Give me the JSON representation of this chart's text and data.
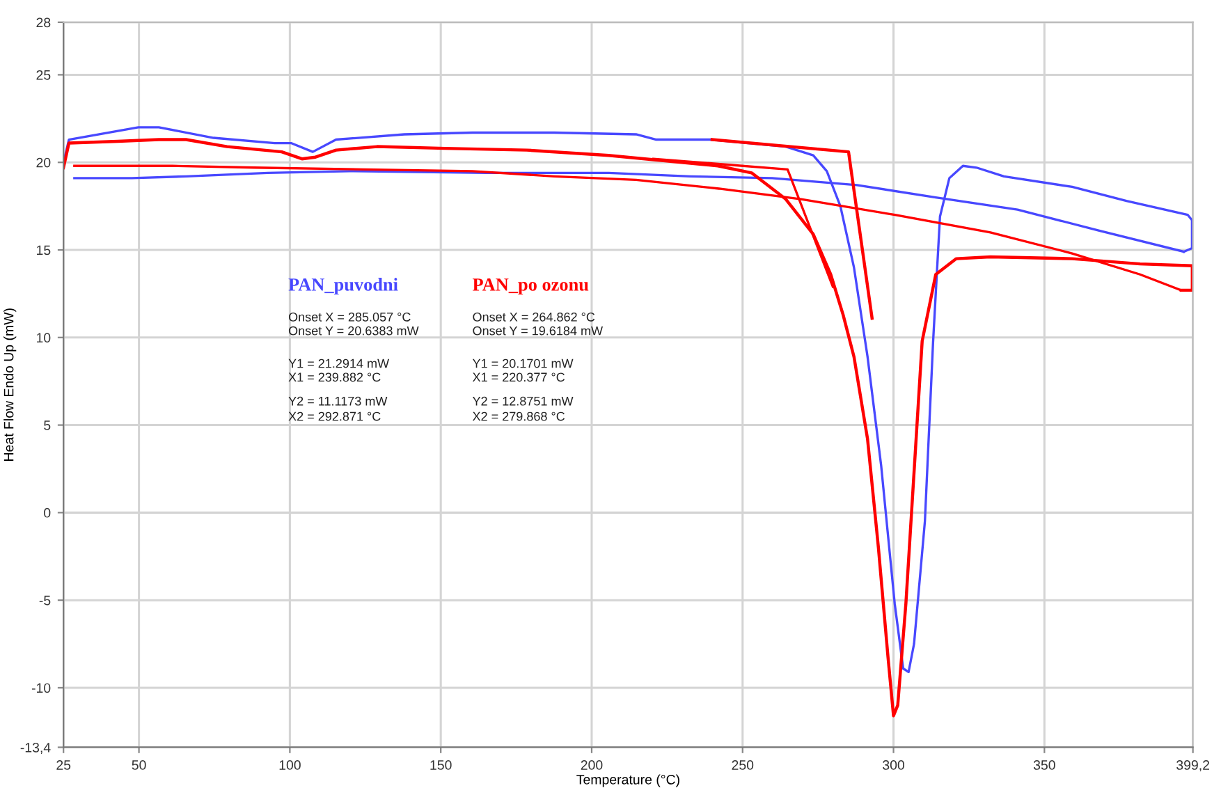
{
  "chart_data": {
    "type": "line",
    "xlabel": "Temperature (°C)",
    "ylabel": "Heat Flow Endo Up (mW)",
    "xlim": [
      25,
      399.2
    ],
    "ylim": [
      -13.4,
      28
    ],
    "xticks": [
      25,
      50,
      100,
      150,
      200,
      250,
      300,
      350,
      {
        "value": 399.2,
        "label": "399,2"
      }
    ],
    "yticks": [
      {
        "value": -13.4,
        "label": "-13,4"
      },
      -10,
      -5,
      0,
      5,
      10,
      15,
      20,
      25,
      28
    ],
    "grid": true,
    "legend": false,
    "marker": "none",
    "line_style": "solid",
    "series": [
      {
        "name": "PAN_puvodni",
        "color": "#4848ff",
        "x": [
          25,
          26.8,
          49.8,
          56.6,
          74.7,
          95,
          100.4,
          107.6,
          115.3,
          137.9,
          160.5,
          187.6,
          214.7,
          221.4,
          239.5,
          264.3,
          273.4,
          277.9,
          282.4,
          286.9,
          291.4,
          295.9,
          300.4,
          303.2,
          305,
          306.8,
          310.4,
          313.1,
          315.4,
          318.5,
          323,
          327.5,
          336.6,
          359.2,
          377.2,
          397.5,
          398.9,
          398.9,
          396.2
        ],
        "values": [
          20,
          21.3,
          22.0,
          22.0,
          21.4,
          21.1,
          21.1,
          20.6,
          21.3,
          21.6,
          21.7,
          21.7,
          21.6,
          21.3,
          21.3,
          20.9,
          20.4,
          19.5,
          17.5,
          14.0,
          8.9,
          2.7,
          -5.2,
          -8.9,
          -9.1,
          -7.5,
          -0.5,
          9.7,
          16.9,
          19.1,
          19.8,
          19.7,
          19.2,
          18.6,
          17.8,
          17.0,
          16.7,
          15.1,
          14.9
        ]
      },
      {
        "color": "#4848ff",
        "x": [
          396.2,
          368.2,
          341.1,
          314,
          287.9,
          259.8,
          232.7,
          205.6,
          165,
          119.8,
          92.7,
          65.6,
          47.6,
          28.6
        ],
        "values": [
          14.9,
          16.1,
          17.3,
          18.0,
          18.7,
          19.1,
          19.2,
          19.4,
          19.4,
          19.5,
          19.4,
          19.2,
          19.1,
          19.1
        ]
      },
      {
        "name": "PAN_po ozonu",
        "color": "#ff0000",
        "x": [
          25,
          26.8,
          43,
          56.6,
          65.6,
          79.2,
          97.3,
          104,
          108.5,
          115.3,
          128.9,
          151.4,
          178.5,
          205.6,
          223.7,
          241.8,
          253,
          264.3,
          273.4,
          279.2,
          283.3,
          286.9,
          291.4,
          295,
          298.2,
          300,
          301.4,
          304.1,
          307.2,
          309.5,
          314,
          320.8,
          332.1,
          359.2,
          381.7,
          399,
          399,
          395.3
        ],
        "values": [
          19.7,
          21.1,
          21.2,
          21.3,
          21.3,
          20.9,
          20.6,
          20.2,
          20.3,
          20.7,
          20.9,
          20.8,
          20.7,
          20.4,
          20.1,
          19.8,
          19.4,
          17.9,
          15.9,
          13.6,
          11.3,
          8.9,
          4.2,
          -2.0,
          -8.3,
          -11.6,
          -11.0,
          -5.2,
          3.4,
          9.8,
          13.6,
          14.5,
          14.6,
          14.5,
          14.2,
          14.1,
          12.7,
          12.7
        ]
      },
      {
        "color": "#ff0000",
        "x": [
          395.3,
          381.7,
          359.2,
          332.1,
          300.5,
          269.4,
          242.2,
          214.7,
          187.6,
          160.5,
          124.3,
          88.2,
          61.1,
          34,
          28.6
        ],
        "values": [
          12.7,
          13.6,
          14.8,
          16.0,
          17.0,
          17.9,
          18.5,
          19.0,
          19.2,
          19.5,
          19.6,
          19.7,
          19.8,
          19.8,
          19.8
        ]
      },
      {
        "color": "#ff0000",
        "x": [
          239.9,
          285.1,
          292.9
        ],
        "values": [
          21.3,
          20.6,
          11.1
        ]
      },
      {
        "color": "#ff0000",
        "x": [
          220.4,
          264.9,
          279.9
        ],
        "values": [
          20.2,
          19.6,
          12.9
        ]
      }
    ],
    "annotations": [
      "Onset X = 285.057 °C",
      "Onset Y = 20.6383 mW",
      "Y1 = 21.2914 mW",
      "X1 = 239.882 °C",
      "Y2 = 11.1173 mW",
      "X2 = 292.871 °C",
      "Onset X = 264.862 °C",
      "Onset Y = 19.6184 mW",
      "Y1 = 20.1701 mW",
      "X1 = 220.377 °C",
      "Y2 = 12.8751 mW",
      "X2 = 279.868 °C"
    ]
  }
}
